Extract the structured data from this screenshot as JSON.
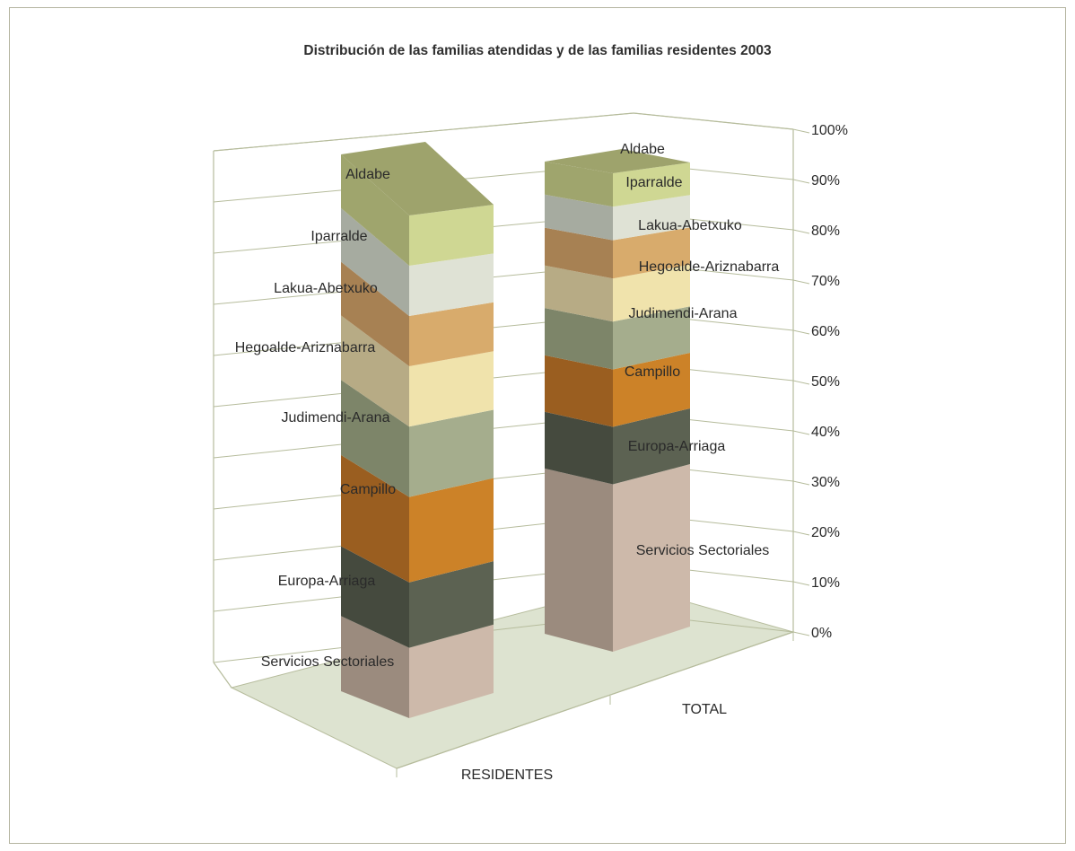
{
  "chart_data": {
    "type": "bar",
    "stacked": true,
    "three_d": true,
    "title": "Distribución de las familias atendidas y de las familias residentes 2003",
    "categories": [
      "RESIDENTES",
      "TOTAL"
    ],
    "y_ticks": [
      "0%",
      "10%",
      "20%",
      "30%",
      "40%",
      "50%",
      "60%",
      "70%",
      "80%",
      "90%",
      "100%"
    ],
    "ylim": [
      0,
      100
    ],
    "grid": true,
    "legend": "none (segment labels)",
    "series": [
      {
        "name": "Servicios Sectoriales",
        "values": [
          14,
          35
        ],
        "colors": {
          "front": "#cdb9aa",
          "side": "#9b8b7e",
          "top": "#ddd0c6"
        }
      },
      {
        "name": "Europa-Arriaga",
        "values": [
          13,
          12
        ],
        "colors": {
          "front": "#5c6252",
          "side": "#454a3e",
          "top": "#727866"
        }
      },
      {
        "name": "Campillo",
        "values": [
          17,
          12
        ],
        "colors": {
          "front": "#cc8228",
          "side": "#9a5e20",
          "top": "#e19a45"
        }
      },
      {
        "name": "Judimendi-Arana",
        "values": [
          14,
          10
        ],
        "colors": {
          "front": "#a5ad8d",
          "side": "#7d8569",
          "top": "#bcc3a6"
        }
      },
      {
        "name": "Hegoalde-Ariznabarra",
        "values": [
          12,
          9
        ],
        "colors": {
          "front": "#f0e3ac",
          "side": "#b7ab85",
          "top": "#f6ecc6"
        }
      },
      {
        "name": "Lakua-Abetxuko",
        "values": [
          10,
          8
        ],
        "colors": {
          "front": "#d8ab6c",
          "side": "#a78153",
          "top": "#e6c08c"
        }
      },
      {
        "name": "Iparralde",
        "values": [
          10,
          7
        ],
        "colors": {
          "front": "#dfe2d5",
          "side": "#a6aba0",
          "top": "#ebeee4"
        }
      },
      {
        "name": "Aldabe",
        "values": [
          10,
          7
        ],
        "colors": {
          "front": "#cfd793",
          "side": "#9fa56d",
          "top": "#9ea36c"
        }
      }
    ]
  }
}
